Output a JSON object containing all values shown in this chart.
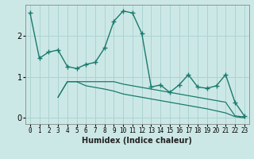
{
  "xlabel": "Humidex (Indice chaleur)",
  "bg_color": "#cce8e6",
  "grid_color": "#aad4d2",
  "line_color": "#1a7a6e",
  "spine_color": "#888888",
  "xlim": [
    -0.5,
    23.5
  ],
  "ylim": [
    -0.15,
    2.75
  ],
  "xticks": [
    0,
    1,
    2,
    3,
    4,
    5,
    6,
    7,
    8,
    9,
    10,
    11,
    12,
    13,
    14,
    15,
    16,
    17,
    18,
    19,
    20,
    21,
    22,
    23
  ],
  "yticks": [
    0,
    1,
    2
  ],
  "line1_x": [
    0,
    1,
    2,
    3,
    4,
    5,
    6,
    7,
    8,
    9,
    10,
    11,
    12,
    13,
    14,
    15,
    16,
    17,
    18,
    19,
    20,
    21,
    22,
    23
  ],
  "line1_y": [
    2.55,
    1.45,
    1.6,
    1.65,
    1.25,
    1.2,
    1.3,
    1.35,
    1.7,
    2.35,
    2.6,
    2.55,
    2.05,
    0.75,
    0.8,
    0.62,
    0.8,
    1.05,
    0.75,
    0.72,
    0.78,
    1.05,
    0.38,
    0.05
  ],
  "line2_x": [
    3,
    4,
    5,
    6,
    7,
    8,
    9,
    10,
    11,
    12,
    13,
    14,
    15,
    16,
    17,
    18,
    19,
    20,
    21,
    22,
    23
  ],
  "line2_y": [
    0.5,
    0.88,
    0.88,
    0.88,
    0.88,
    0.88,
    0.88,
    0.82,
    0.78,
    0.74,
    0.7,
    0.66,
    0.62,
    0.58,
    0.54,
    0.5,
    0.46,
    0.42,
    0.38,
    0.05,
    0.02
  ],
  "line3_x": [
    3,
    4,
    5,
    6,
    7,
    8,
    9,
    10,
    11,
    12,
    13,
    14,
    15,
    16,
    17,
    18,
    19,
    20,
    21,
    22,
    23
  ],
  "line3_y": [
    0.5,
    0.88,
    0.88,
    0.78,
    0.74,
    0.7,
    0.65,
    0.58,
    0.54,
    0.5,
    0.46,
    0.42,
    0.38,
    0.34,
    0.3,
    0.26,
    0.22,
    0.17,
    0.12,
    0.03,
    0.0
  ]
}
